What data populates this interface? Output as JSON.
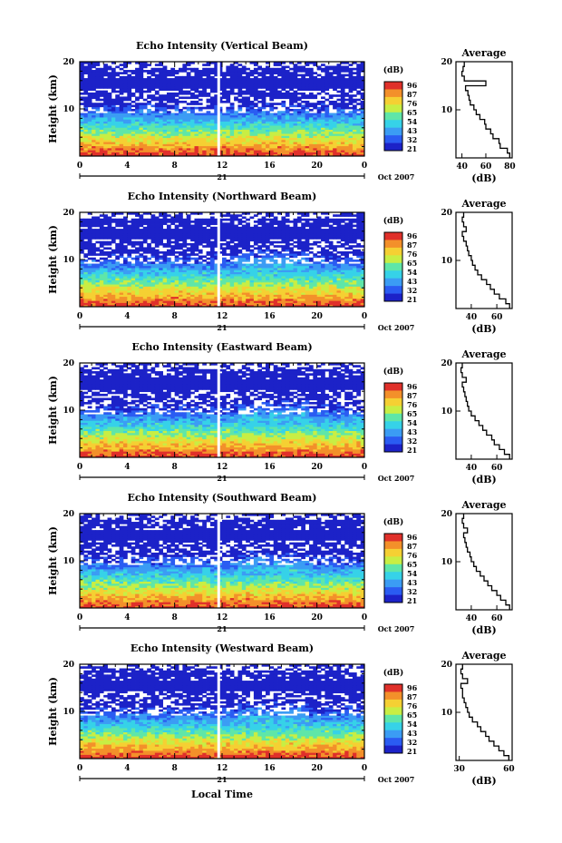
{
  "panels": [
    {
      "title": "Echo Intensity (Vertical Beam)",
      "avg_xticks": [
        "40",
        "60",
        "80"
      ],
      "avg_xlim": [
        35,
        82
      ],
      "colorbar_ticks": [
        "96",
        "87",
        "76",
        "65",
        "54",
        "43",
        "32",
        "21"
      ]
    },
    {
      "title": "Echo Intensity (Northward Beam)",
      "avg_xticks": [
        "40",
        "60"
      ],
      "avg_xlim": [
        28,
        72
      ],
      "colorbar_ticks": [
        "96",
        "87",
        "76",
        "65",
        "54",
        "43",
        "32",
        "21"
      ]
    },
    {
      "title": "Echo Intensity (Eastward Beam)",
      "avg_xticks": [
        "40",
        "60"
      ],
      "avg_xlim": [
        28,
        72
      ],
      "colorbar_ticks": [
        "96",
        "87",
        "76",
        "65",
        "54",
        "43",
        "32",
        "21"
      ]
    },
    {
      "title": "Echo Intensity (Southward Beam)",
      "avg_xticks": [
        "40",
        "60"
      ],
      "avg_xlim": [
        28,
        72
      ],
      "colorbar_ticks": [
        "96",
        "87",
        "76",
        "65",
        "54",
        "43",
        "32",
        "21"
      ]
    },
    {
      "title": "Echo Intensity (Westward Beam)",
      "avg_xticks": [
        "30",
        "60"
      ],
      "avg_xlim": [
        28,
        62
      ],
      "colorbar_ticks": [
        "96",
        "87",
        "76",
        "65",
        "54",
        "43",
        "32",
        "21"
      ]
    }
  ],
  "common": {
    "ylabel": "Height (km)",
    "yticks": [
      "20",
      "10"
    ],
    "xticks": [
      "0",
      "4",
      "8",
      "12",
      "16",
      "20",
      "0"
    ],
    "day_label": "21",
    "date_label": "Oct 2007",
    "colorbar_unit": "(dB)",
    "avg_title": "Average",
    "avg_xlabel": "(dB)",
    "avg_yticks": [
      "20",
      "10"
    ],
    "xlabel_bottom": "Local Time"
  },
  "colors": {
    "scale": [
      "#1c22c8",
      "#2a5cf2",
      "#3b9cf4",
      "#36d2e8",
      "#5fe6a8",
      "#c8ee44",
      "#f5d033",
      "#f3902a",
      "#e0302a"
    ]
  },
  "chart_data": [
    {
      "type": "heatmap",
      "title": "Echo Intensity (Vertical Beam)",
      "ylabel": "Height (km)",
      "xlabel": "Local Time",
      "x_range": [
        0,
        24
      ],
      "y_range": [
        0,
        20
      ],
      "z_unit": "dB",
      "z_range": [
        21,
        96
      ],
      "average_profile": {
        "height_km": [
          1,
          2,
          3,
          4,
          5,
          6,
          7,
          8,
          9,
          10,
          11,
          12,
          13,
          14,
          15,
          16,
          17,
          18,
          19,
          20
        ],
        "db": [
          80,
          78,
          72,
          71,
          66,
          64,
          60,
          59,
          55,
          52,
          50,
          47,
          46,
          45,
          43,
          60,
          42,
          40,
          41,
          42
        ]
      }
    },
    {
      "type": "heatmap",
      "title": "Echo Intensity (Northward Beam)",
      "ylabel": "Height (km)",
      "xlabel": "Local Time",
      "x_range": [
        0,
        24
      ],
      "y_range": [
        0,
        20
      ],
      "z_unit": "dB",
      "z_range": [
        21,
        96
      ],
      "average_profile": {
        "height_km": [
          1,
          2,
          3,
          4,
          5,
          6,
          7,
          8,
          9,
          10,
          11,
          12,
          13,
          14,
          15,
          16,
          17,
          18,
          19,
          20
        ],
        "db": [
          70,
          67,
          62,
          58,
          55,
          52,
          48,
          45,
          43,
          41,
          40,
          38,
          37,
          36,
          34,
          33,
          36,
          34,
          33,
          34
        ]
      }
    },
    {
      "type": "heatmap",
      "title": "Echo Intensity (Eastward Beam)",
      "ylabel": "Height (km)",
      "xlabel": "Local Time",
      "x_range": [
        0,
        24
      ],
      "y_range": [
        0,
        20
      ],
      "z_unit": "dB",
      "z_range": [
        21,
        96
      ],
      "average_profile": {
        "height_km": [
          1,
          2,
          3,
          4,
          5,
          6,
          7,
          8,
          9,
          10,
          11,
          12,
          13,
          14,
          15,
          16,
          17,
          18,
          19,
          20
        ],
        "db": [
          70,
          66,
          62,
          58,
          56,
          52,
          49,
          46,
          43,
          40,
          38,
          37,
          36,
          35,
          34,
          33,
          36,
          33,
          32,
          33
        ]
      }
    },
    {
      "type": "heatmap",
      "title": "Echo Intensity (Southward Beam)",
      "ylabel": "Height (km)",
      "xlabel": "Local Time",
      "x_range": [
        0,
        24
      ],
      "y_range": [
        0,
        20
      ],
      "z_unit": "dB",
      "z_range": [
        21,
        96
      ],
      "average_profile": {
        "height_km": [
          1,
          2,
          3,
          4,
          5,
          6,
          7,
          8,
          9,
          10,
          11,
          12,
          13,
          14,
          15,
          16,
          17,
          18,
          19,
          20
        ],
        "db": [
          70,
          67,
          63,
          60,
          56,
          53,
          50,
          47,
          44,
          42,
          40,
          39,
          37,
          36,
          35,
          34,
          37,
          34,
          33,
          34
        ]
      }
    },
    {
      "type": "heatmap",
      "title": "Echo Intensity (Westward Beam)",
      "ylabel": "Height (km)",
      "xlabel": "Local Time",
      "x_range": [
        0,
        24
      ],
      "y_range": [
        0,
        20
      ],
      "z_unit": "dB",
      "z_range": [
        21,
        96
      ],
      "average_profile": {
        "height_km": [
          1,
          2,
          3,
          4,
          5,
          6,
          7,
          8,
          9,
          10,
          11,
          12,
          13,
          14,
          15,
          16,
          17,
          18,
          19,
          20
        ],
        "db": [
          60,
          57,
          54,
          51,
          48,
          46,
          43,
          41,
          38,
          36,
          35,
          34,
          33,
          32,
          32,
          31,
          35,
          32,
          31,
          32
        ]
      }
    }
  ]
}
